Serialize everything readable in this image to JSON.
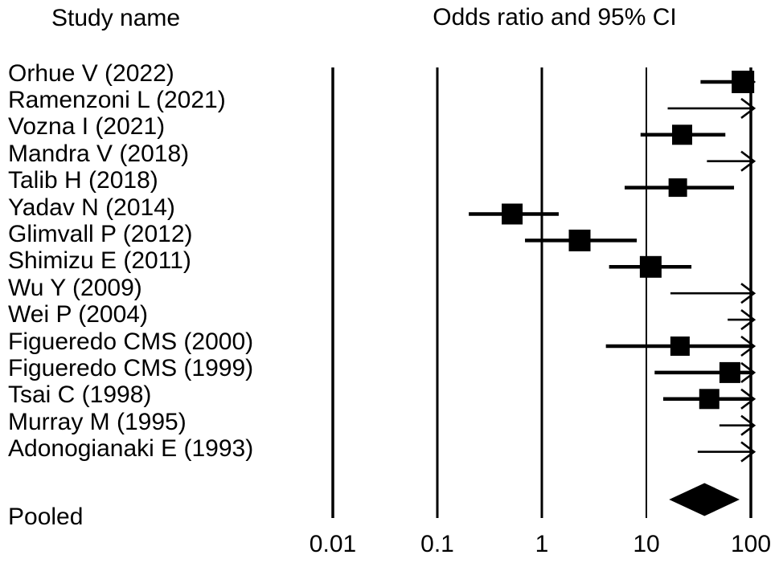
{
  "page": {
    "background": "#ffffff",
    "ink": "#000000"
  },
  "chart_data": {
    "type": "forest",
    "title_left": "Study name",
    "title_right": "Odds ratio and 95% CI",
    "x_axis": {
      "scale": "log10",
      "range": [
        0.01,
        100
      ],
      "ticks": [
        {
          "value": 0.01,
          "label": "0.01"
        },
        {
          "value": 0.1,
          "label": "0.1"
        },
        {
          "value": 1,
          "label": "1"
        },
        {
          "value": 10,
          "label": "10"
        },
        {
          "value": 100,
          "label": "100"
        }
      ],
      "note": "upper CIs marked arrow_high extend beyond axis maximum of 100 (right arrow)"
    },
    "studies": [
      {
        "label": "Orhue V (2022)",
        "or": 84,
        "ci_low": 33,
        "ci_high": null,
        "arrow_high": true,
        "square": 28
      },
      {
        "label": "Ramenzoni L (2021)",
        "or": null,
        "ci_low": 16,
        "ci_high": null,
        "arrow_high": true,
        "square": null
      },
      {
        "label": "Vozna I (2021)",
        "or": 22,
        "ci_low": 8.8,
        "ci_high": 57,
        "arrow_high": false,
        "square": 25
      },
      {
        "label": "Mandra V (2018)",
        "or": null,
        "ci_low": 38,
        "ci_high": null,
        "arrow_high": true,
        "square": null
      },
      {
        "label": "Talib H (2018)",
        "or": 20,
        "ci_low": 6.2,
        "ci_high": 69,
        "arrow_high": false,
        "square": 23
      },
      {
        "label": "Yadav N (2014)",
        "or": 0.52,
        "ci_low": 0.2,
        "ci_high": 1.45,
        "arrow_high": false,
        "square": 26
      },
      {
        "label": "Glimvall P (2012)",
        "or": 2.3,
        "ci_low": 0.69,
        "ci_high": 8.1,
        "arrow_high": false,
        "square": 27
      },
      {
        "label": "Shimizu E (2011)",
        "or": 11,
        "ci_low": 4.4,
        "ci_high": 27,
        "arrow_high": false,
        "square": 27
      },
      {
        "label": "Wu Y (2009)",
        "or": null,
        "ci_low": 17,
        "ci_high": null,
        "arrow_high": true,
        "square": null
      },
      {
        "label": "Wei P (2004)",
        "or": null,
        "ci_low": 60,
        "ci_high": null,
        "arrow_high": true,
        "square": null
      },
      {
        "label": "Figueredo CMS (2000)",
        "or": 21,
        "ci_low": 4.1,
        "ci_high": null,
        "arrow_high": true,
        "square": 24
      },
      {
        "label": "Figueredo CMS (1999)",
        "or": 63,
        "ci_low": 12,
        "ci_high": null,
        "arrow_high": true,
        "square": 26
      },
      {
        "label": "Tsai C (1998)",
        "or": 40,
        "ci_low": 14.5,
        "ci_high": null,
        "arrow_high": true,
        "square": 25
      },
      {
        "label": "Murray M (1995)",
        "or": null,
        "ci_low": 50,
        "ci_high": null,
        "arrow_high": true,
        "square": null
      },
      {
        "label": "Adonogianaki E (1993)",
        "or": null,
        "ci_low": 31,
        "ci_high": null,
        "arrow_high": true,
        "square": null
      }
    ],
    "pooled": {
      "label": "Pooled",
      "or": 36,
      "ci_low": 16.5,
      "ci_high": 78
    }
  }
}
